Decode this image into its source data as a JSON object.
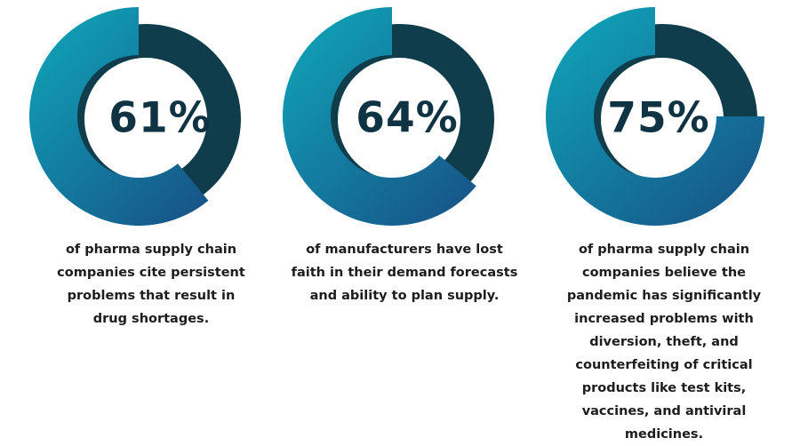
{
  "colors": {
    "remainder": "#0f3d4c",
    "gradient_light": "#0fa8bb",
    "gradient_dark": "#175688",
    "label": "#0f3342",
    "text": "#1d1d1d"
  },
  "chart_data": [
    {
      "type": "pie",
      "value": 61,
      "label": "61%",
      "caption": "of pharma supply chain companies cite persistent problems that result in drug shortages."
    },
    {
      "type": "pie",
      "value": 64,
      "label": "64%",
      "caption": "of manufacturers have lost faith in their demand forecasts and ability to plan supply."
    },
    {
      "type": "pie",
      "value": 75,
      "label": "75%",
      "caption": "of pharma supply chain companies believe the pandemic has significantly increased problems with diversion, theft, and counterfeiting of critical products like test kits, vaccines, and antiviral medicines."
    }
  ]
}
